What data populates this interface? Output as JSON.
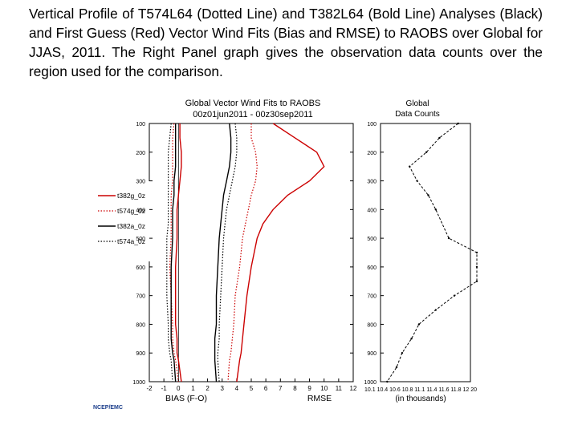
{
  "caption": "Vertical Profile of T574L64 (Dotted Line) and T382L64 (Bold Line) Analyses (Black) and First Guess (Red) Vector Wind Fits (Bias and RMSE) to RAOBS over Global for JJAS, 2011. The Right Panel graph gives the observation data counts over the region used for the comparison.",
  "figure": {
    "title_line1": "Global Vector Wind Fits to RAOBS",
    "title_line2": "00z01jun2011 - 00z30sep2011",
    "counts_title_line1": "Global",
    "counts_title_line2": "Data Counts",
    "credit": "NCEP/EMC",
    "colors": {
      "first_guess": "#cc0000",
      "analysis": "#000000"
    }
  },
  "chart_data": {
    "type": "line",
    "y_axis": {
      "label": "pressure (hPa)",
      "range": [
        100,
        1000
      ],
      "inverted": true,
      "ticks": [
        "100",
        "200",
        "300",
        "400",
        "500",
        "600",
        "700",
        "800",
        "900",
        "1000"
      ]
    },
    "x_axis": {
      "range": [
        -2,
        12
      ],
      "ticks": [
        "-2",
        "-1",
        "0",
        "1",
        "2",
        "3",
        "4",
        "5",
        "6",
        "7",
        "8",
        "9",
        "10",
        "11",
        "12"
      ],
      "label_bias": "BIAS (F-O)",
      "label_rmse": "RMSE"
    },
    "pressure_levels": [
      100,
      150,
      200,
      250,
      300,
      350,
      400,
      450,
      500,
      600,
      700,
      800,
      850,
      900,
      925,
      1000
    ],
    "legend": [
      {
        "name": "t382g_0z",
        "color": "#cc0000",
        "style": "solid"
      },
      {
        "name": "t574g_0z",
        "color": "#cc0000",
        "style": "dotted"
      },
      {
        "name": "t382a_0z",
        "color": "#000000",
        "style": "solid"
      },
      {
        "name": "t574a_0z",
        "color": "#000000",
        "style": "dotted"
      }
    ],
    "series": [
      {
        "name": "t382g_0z",
        "color": "#cc0000",
        "style": "solid",
        "kind": "bias",
        "values": [
          0.1,
          0.1,
          0.2,
          0.2,
          0.1,
          0.0,
          -0.1,
          -0.1,
          -0.1,
          -0.2,
          -0.2,
          -0.2,
          -0.1,
          -0.1,
          0.0,
          0.2
        ]
      },
      {
        "name": "t574g_0z",
        "color": "#cc0000",
        "style": "dotted",
        "kind": "bias",
        "values": [
          -0.3,
          -0.4,
          -0.4,
          -0.4,
          -0.4,
          -0.5,
          -0.5,
          -0.5,
          -0.5,
          -0.6,
          -0.5,
          -0.4,
          -0.4,
          -0.3,
          -0.2,
          0.0
        ]
      },
      {
        "name": "t382a_0z",
        "color": "#000000",
        "style": "solid",
        "kind": "bias",
        "values": [
          -0.2,
          -0.2,
          -0.2,
          -0.2,
          -0.3,
          -0.3,
          -0.4,
          -0.4,
          -0.4,
          -0.5,
          -0.5,
          -0.5,
          -0.5,
          -0.4,
          -0.3,
          -0.2
        ]
      },
      {
        "name": "t574a_0z",
        "color": "#000000",
        "style": "dotted",
        "kind": "bias",
        "values": [
          -0.5,
          -0.6,
          -0.7,
          -0.7,
          -0.7,
          -0.7,
          -0.7,
          -0.7,
          -0.8,
          -0.8,
          -0.8,
          -0.7,
          -0.7,
          -0.6,
          -0.5,
          -0.4
        ]
      },
      {
        "name": "t382g_0z",
        "color": "#cc0000",
        "style": "solid",
        "kind": "rmse",
        "values": [
          6.5,
          8.0,
          9.5,
          10.0,
          9.0,
          7.5,
          6.5,
          5.8,
          5.4,
          5.0,
          4.7,
          4.5,
          4.4,
          4.3,
          4.2,
          4.0
        ]
      },
      {
        "name": "t574g_0z",
        "color": "#cc0000",
        "style": "dotted",
        "kind": "rmse",
        "values": [
          5.0,
          5.0,
          5.3,
          5.4,
          5.3,
          5.0,
          4.8,
          4.6,
          4.4,
          4.2,
          3.9,
          3.8,
          3.7,
          3.6,
          3.5,
          3.4
        ]
      },
      {
        "name": "t382a_0z",
        "color": "#000000",
        "style": "solid",
        "kind": "rmse",
        "values": [
          3.5,
          3.6,
          3.6,
          3.5,
          3.3,
          3.1,
          3.0,
          2.9,
          2.8,
          2.7,
          2.6,
          2.6,
          2.5,
          2.5,
          2.5,
          2.6
        ]
      },
      {
        "name": "t574a_0z",
        "color": "#000000",
        "style": "dotted",
        "kind": "rmse",
        "values": [
          3.9,
          4.0,
          4.0,
          3.9,
          3.7,
          3.5,
          3.3,
          3.2,
          3.1,
          3.0,
          2.9,
          2.8,
          2.8,
          2.7,
          2.7,
          2.8
        ]
      }
    ],
    "counts_panel": {
      "range": [
        10.1,
        20.0
      ],
      "ticks": [
        "10.1",
        "10.4",
        "10.6",
        "10.8",
        "11.1",
        "11.4",
        "11.6",
        "11.8",
        "12",
        "20"
      ],
      "x_tick_label": "10.1 10.4 10.6 10.8 11.1 11.4 11.6 11.8 12 20",
      "xlabel": "(in thousands)",
      "levels": [
        100,
        150,
        200,
        250,
        300,
        350,
        400,
        500,
        550,
        600,
        650,
        700,
        750,
        800,
        850,
        900,
        950,
        1000
      ],
      "counts": [
        14.0,
        13.0,
        12.3,
        11.4,
        11.8,
        12.4,
        12.8,
        13.5,
        15.0,
        15.0,
        15.0,
        13.8,
        12.8,
        11.9,
        11.5,
        11.0,
        10.7,
        10.2
      ]
    }
  }
}
